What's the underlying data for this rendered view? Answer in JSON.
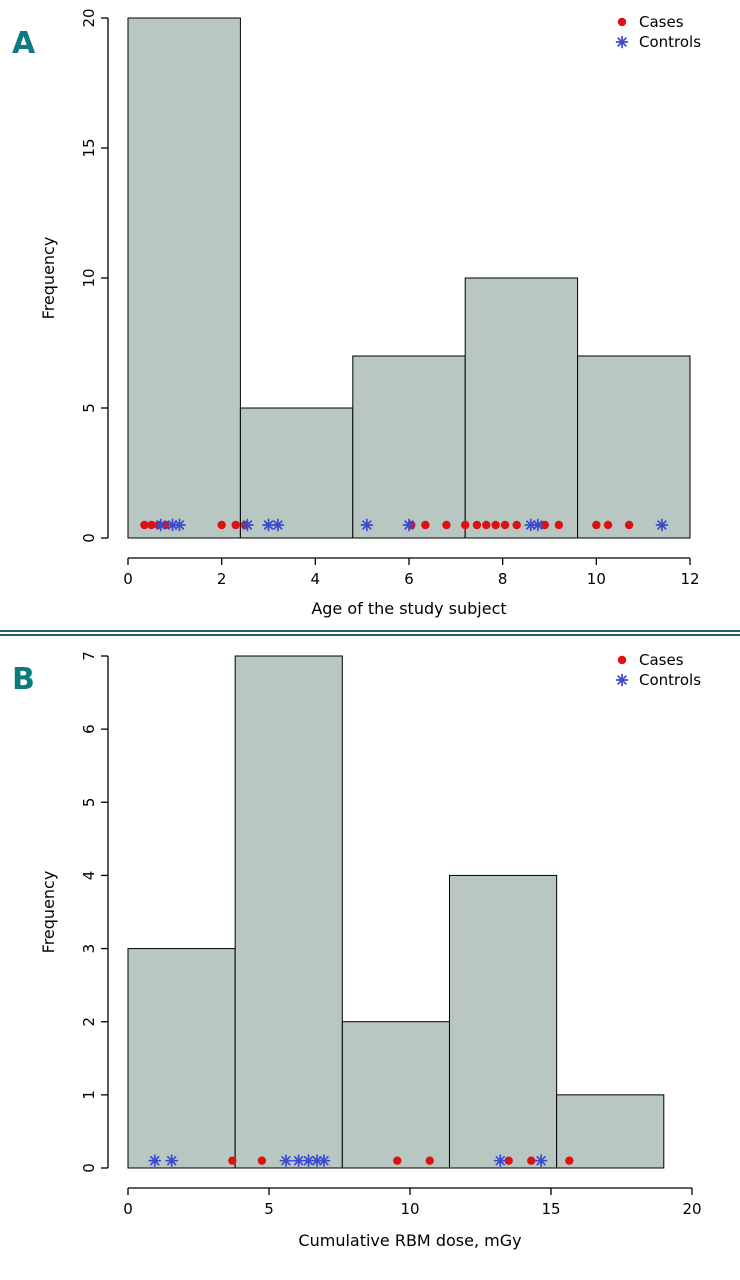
{
  "colors": {
    "bar_fill": "#b9c7c2",
    "bar_stroke": "#000000",
    "axis": "#000000",
    "cases": "#dd1111",
    "controls": "#3c4ad0",
    "panel_label": "#0b7b80",
    "divider": "#2e5f62"
  },
  "chart_data": [
    {
      "type": "bar",
      "subtype": "histogram",
      "panel_label": "A",
      "title": "",
      "xlabel": "Age of the study subject",
      "ylabel": "Frequency",
      "xlim": [
        0,
        12
      ],
      "ylim": [
        0,
        20
      ],
      "xticks": [
        0,
        2,
        4,
        6,
        8,
        10,
        12
      ],
      "yticks": [
        0,
        5,
        10,
        15,
        20
      ],
      "breaks": [
        0,
        2.4,
        4.8,
        7.2,
        9.6,
        12
      ],
      "counts": [
        20,
        5,
        7,
        10,
        7
      ],
      "points_y": 0.5,
      "cases_x": [
        0.35,
        0.5,
        0.65,
        0.8,
        2.0,
        2.3,
        2.5,
        6.05,
        6.35,
        6.8,
        7.2,
        7.45,
        7.65,
        7.85,
        8.05,
        8.3,
        8.9,
        9.2,
        10.0,
        10.25,
        10.7
      ],
      "controls_x": [
        0.7,
        0.95,
        1.1,
        2.55,
        3.0,
        3.2,
        5.1,
        6.0,
        8.6,
        8.75,
        11.4
      ],
      "legend": [
        {
          "marker": "dot",
          "label": "Cases"
        },
        {
          "marker": "asterisk",
          "label": "Controls"
        }
      ],
      "grid": false,
      "legend_position": "top-right"
    },
    {
      "type": "bar",
      "subtype": "histogram",
      "panel_label": "B",
      "title": "",
      "xlabel": "Cumulative RBM dose, mGy",
      "ylabel": "Frequency",
      "xlim": [
        0,
        20
      ],
      "ylim": [
        0,
        7
      ],
      "xticks": [
        0,
        5,
        10,
        15,
        20
      ],
      "yticks": [
        0,
        1,
        2,
        3,
        4,
        5,
        6,
        7
      ],
      "breaks": [
        0,
        3.8,
        7.6,
        11.4,
        15.2,
        19
      ],
      "counts": [
        3,
        7,
        2,
        4,
        1
      ],
      "points_y": 0.1,
      "cases_x": [
        3.7,
        4.75,
        9.55,
        10.7,
        13.5,
        14.3,
        15.65
      ],
      "controls_x": [
        0.95,
        1.55,
        5.6,
        6.05,
        6.4,
        6.7,
        6.95,
        13.2,
        14.65
      ],
      "legend": [
        {
          "marker": "dot",
          "label": "Cases"
        },
        {
          "marker": "asterisk",
          "label": "Controls"
        }
      ],
      "grid": false,
      "legend_position": "top-right"
    }
  ]
}
